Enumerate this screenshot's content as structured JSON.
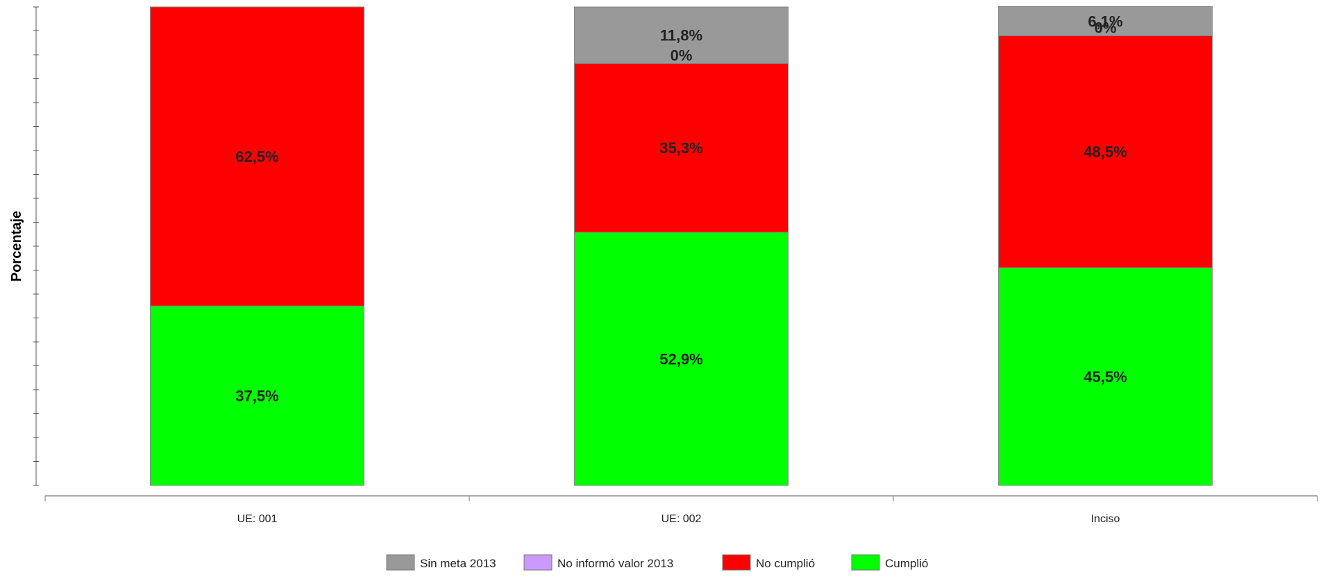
{
  "chart_data": {
    "type": "bar",
    "stacked": true,
    "title": "",
    "xlabel": "",
    "ylabel": "Porcentaje",
    "ylim": [
      0,
      100
    ],
    "grid": false,
    "legend_position": "bottom",
    "categories": [
      "UE: 001",
      "UE: 002",
      "Inciso"
    ],
    "series": [
      {
        "name": "Cumplió",
        "color": "#00ff00",
        "values": [
          37.5,
          52.9,
          45.5
        ],
        "labels": [
          "37,5%",
          "52,9%",
          "45,5%"
        ]
      },
      {
        "name": "No cumplió",
        "color": "#ff0000",
        "values": [
          62.5,
          35.3,
          48.5
        ],
        "labels": [
          "62,5%",
          "35,3%",
          "48,5%"
        ]
      },
      {
        "name": "No informó valor 2013",
        "color": "#cc99ff",
        "values": [
          0,
          0,
          0
        ],
        "labels": [
          "",
          "0%",
          "0%"
        ]
      },
      {
        "name": "Sin meta 2013",
        "color": "#999999",
        "values": [
          0,
          11.8,
          6.1
        ],
        "labels": [
          "",
          "11,8%",
          "6,1%"
        ]
      }
    ],
    "legend_order": [
      "Sin meta 2013",
      "No informó valor 2013",
      "No cumplió",
      "Cumplió"
    ]
  }
}
